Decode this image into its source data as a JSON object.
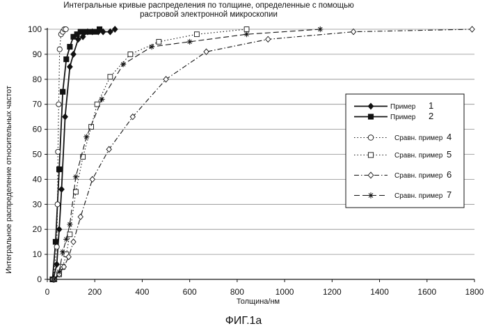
{
  "chart_data": {
    "type": "line",
    "title": "Интегральные кривые распределения по толщине, определенные с помощью растровой электронной микроскопии",
    "xlabel": "Толщина/нм",
    "ylabel": "Интегральное распределение относительных частот",
    "xlim": [
      0,
      1800
    ],
    "ylim": [
      0,
      100
    ],
    "xticks": [
      "0",
      "200",
      "400",
      "600",
      "800",
      "1000",
      "1200",
      "1400",
      "1600",
      "1800"
    ],
    "yticks": [
      "0",
      "10",
      "20",
      "30",
      "40",
      "50",
      "60",
      "70",
      "80",
      "90",
      "100"
    ],
    "grid": "horizontal",
    "legend_position": "right",
    "series": [
      {
        "name": "Пример",
        "number": "1",
        "marker": "diamond-filled",
        "line": "solid",
        "x": [
          25,
          40,
          50,
          60,
          75,
          95,
          110,
          130,
          150,
          170,
          190,
          215,
          235,
          265,
          285
        ],
        "y": [
          0,
          6,
          20,
          36,
          65,
          85,
          90,
          96,
          97,
          99,
          99,
          99,
          99,
          99,
          100
        ]
      },
      {
        "name": "Пример",
        "number": "2",
        "marker": "square-filled",
        "line": "solid",
        "x": [
          22,
          35,
          50,
          65,
          80,
          95,
          110,
          125,
          140,
          160,
          180,
          200,
          220
        ],
        "y": [
          0,
          15,
          44,
          75,
          88,
          93,
          97,
          98,
          99,
          99,
          99,
          99,
          100
        ]
      },
      {
        "name": "Сравн. пример",
        "number": "4",
        "marker": "circle-open",
        "line": "dotted",
        "x": [
          25,
          40,
          43,
          45,
          48,
          52,
          58,
          65,
          72,
          78
        ],
        "y": [
          0,
          13,
          30,
          51,
          70,
          92,
          98,
          99,
          100,
          100
        ]
      },
      {
        "name": "Сравн. пример",
        "number": "5",
        "marker": "square-open",
        "line": "dotted",
        "x": [
          30,
          50,
          65,
          80,
          95,
          120,
          150,
          185,
          210,
          265,
          350,
          470,
          630,
          840
        ],
        "y": [
          0,
          2,
          5,
          10,
          18,
          35,
          49,
          61,
          70,
          81,
          90,
          95,
          98,
          100
        ]
      },
      {
        "name": "Сравн. пример",
        "number": "6",
        "marker": "diamond-open",
        "line": "dashdot",
        "x": [
          30,
          50,
          70,
          90,
          110,
          140,
          190,
          260,
          360,
          500,
          670,
          930,
          1290,
          1790
        ],
        "y": [
          0,
          2,
          5,
          9,
          15,
          25,
          40,
          52,
          65,
          80,
          91,
          96,
          99,
          100
        ]
      },
      {
        "name": "Сравн. пример",
        "number": "7",
        "marker": "star",
        "line": "dashdash",
        "x": [
          30,
          50,
          65,
          80,
          95,
          120,
          165,
          230,
          320,
          440,
          600,
          840,
          1150
        ],
        "y": [
          0,
          3,
          11,
          16,
          22,
          41,
          57,
          72,
          86,
          93,
          95,
          98,
          100
        ]
      }
    ]
  },
  "figure_caption": "ФИГ.1a"
}
